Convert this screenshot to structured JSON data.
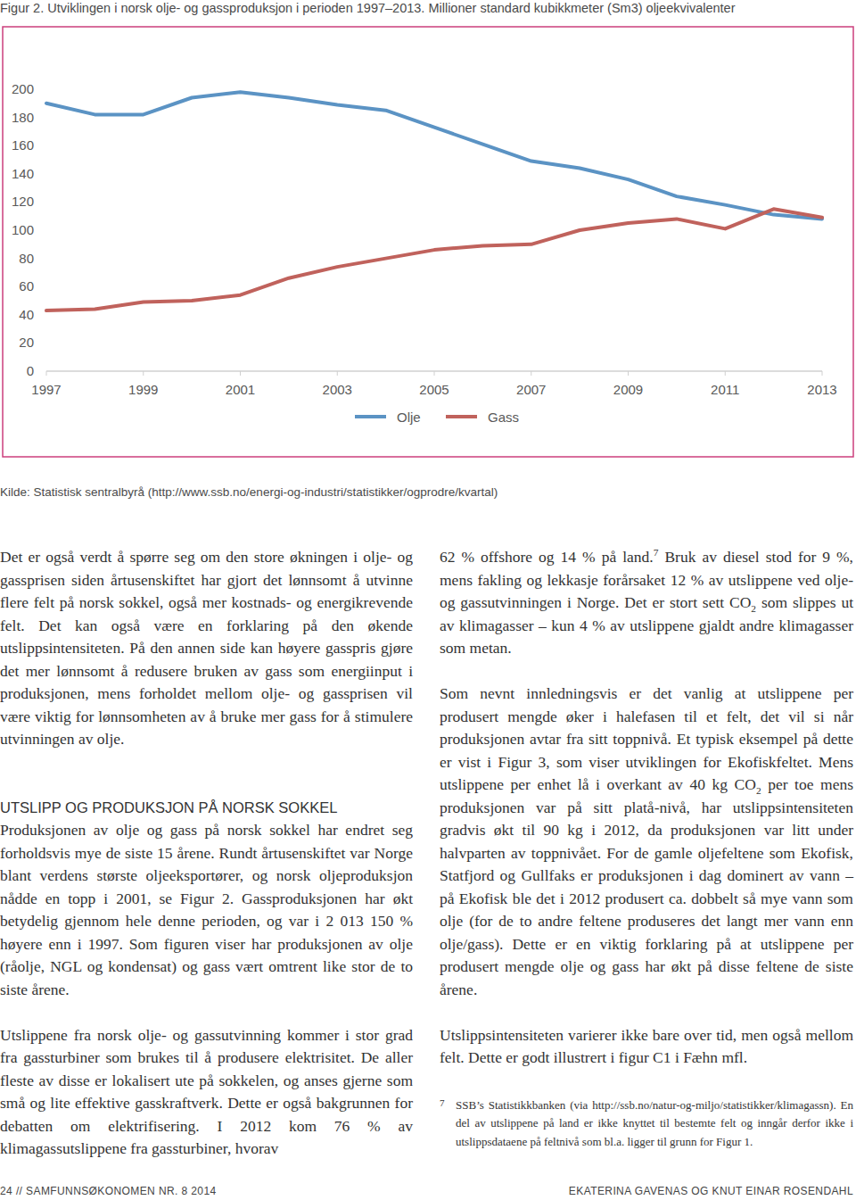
{
  "chart_data": {
    "type": "line",
    "title": "Figur 2. Utviklingen i norsk olje- og gassproduksjon i perioden 1997–2013. Millioner standard kubikkmeter (Sm3) oljeekvivalenter",
    "source": "Kilde: Statistisk sentralbyrå (http://www.ssb.no/energi-og-industri/statistikker/ogprodre/kvartal)",
    "x": [
      1997,
      1998,
      1999,
      2000,
      2001,
      2002,
      2003,
      2004,
      2005,
      2006,
      2007,
      2008,
      2009,
      2010,
      2011,
      2012,
      2013
    ],
    "xlim": [
      1997,
      2013
    ],
    "xticks": [
      1997,
      1999,
      2001,
      2003,
      2005,
      2007,
      2009,
      2011,
      2013
    ],
    "ylim": [
      0,
      200
    ],
    "yticks": [
      0,
      20,
      40,
      60,
      80,
      100,
      120,
      140,
      160,
      180,
      200
    ],
    "grid": false,
    "legend": "bottom",
    "series": [
      {
        "name": "Olje",
        "color": "#5b93c4",
        "values": [
          190,
          182,
          182,
          194,
          198,
          194,
          189,
          185,
          173,
          161,
          149,
          144,
          136,
          124,
          118,
          111,
          108
        ]
      },
      {
        "name": "Gass",
        "color": "#c0625c",
        "values": [
          43,
          44,
          49,
          50,
          54,
          66,
          74,
          80,
          86,
          89,
          90,
          100,
          105,
          108,
          101,
          115,
          109
        ]
      }
    ]
  },
  "document": {
    "columns": [
      {
        "blocks": [
          {
            "kind": "paragraph",
            "segments": [
              {
                "text": "Det er også verdt å spørre seg om den store økningen i olje- og gassprisen siden årtusenskiftet har gjort det lønnsomt å utvinne flere felt på norsk sokkel, også mer kostnads- og energikrevende felt. Det kan også være en forklaring på den økende utslippsintensiteten. På den annen side kan høyere gasspris gjøre det mer lønnsomt å redusere bruken av gass som energiinput i produksjonen, mens forholdet mellom olje- og gassprisen vil være viktig for lønnsomheten av å bruke mer gass for å stimulere utvinningen av olje."
              }
            ]
          },
          {
            "kind": "heading",
            "segments": [
              {
                "text": "UTSLIPP OG PRODUKSJON PÅ NORSK SOKKEL"
              }
            ]
          },
          {
            "kind": "paragraph",
            "segments": [
              {
                "text": "Produksjonen av olje og gass på norsk sokkel har endret seg forholdsvis mye de siste 15 årene. Rundt årtusenskiftet var Norge blant verdens største oljeeksportører, og norsk oljeproduksjon nådde en topp i 2001, se Figur 2. Gassproduksjonen har økt betydelig gjennom hele denne perioden, og var i 2 013 150 % høyere enn i 1997. Som figuren viser har produksjonen av olje (råolje, NGL og kondensat) og gass vært omtrent like stor de to siste årene."
              }
            ]
          },
          {
            "kind": "paragraph",
            "segments": [
              {
                "text": "Utslippene fra norsk olje- og gassutvinning kommer i stor grad fra gassturbiner som brukes til å produsere elektrisitet. De aller fleste av disse er lokalisert ute på sokkelen, og anses gjerne som små og lite effektive gasskraftverk. Dette er også bakgrunnen for debatten om elektrifisering. I 2012 kom 76 % av klimagassutslippene fra gassturbiner, hvorav"
              }
            ]
          }
        ]
      },
      {
        "blocks": [
          {
            "kind": "paragraph",
            "segments": [
              {
                "text": "62 % offshore og 14 % på land."
              },
              {
                "text": "7",
                "style": "sup"
              },
              {
                "text": " Bruk av diesel stod for 9 %, mens fakling og lekkasje forårsaket 12 % av utslippene ved olje- og gassutvinningen i Norge. Det er stort sett CO"
              },
              {
                "text": "2",
                "style": "sub"
              },
              {
                "text": " som slippes ut av klimagasser – kun 4 % av utslippene gjaldt andre klimagasser som metan."
              }
            ]
          },
          {
            "kind": "paragraph",
            "segments": [
              {
                "text": "Som nevnt innledningsvis er det vanlig at utslippene per produsert mengde øker i halefasen til et felt, det vil si når produksjonen avtar fra sitt toppnivå. Et typisk eksempel på dette er vist i Figur 3, som viser utviklingen for Ekofiskfeltet. Mens utslippene per enhet lå i overkant av 40 kg CO"
              },
              {
                "text": "2",
                "style": "sub"
              },
              {
                "text": " per toe mens produksjonen var på sitt platå-nivå, har utslippsintensiteten gradvis økt til 90 kg i 2012, da produksjonen var litt under halvparten av toppnivået. For de gamle oljefeltene som Ekofisk, Statfjord og Gullfaks er produksjonen i dag dominert av vann – på Ekofisk ble det i 2012 produsert ca. dobbelt så mye vann som olje (for de to andre feltene produseres det langt mer vann enn olje/gass). Dette er en viktig forklaring på at utslippene per produsert mengde olje og gass har økt på disse feltene de siste årene."
              }
            ]
          },
          {
            "kind": "paragraph",
            "segments": [
              {
                "text": "Utslippsintensiteten varierer ikke bare over tid, men også mellom felt. Dette er godt illustrert i figur C1 i Fæhn mfl."
              }
            ]
          },
          {
            "kind": "footnote",
            "number": "7",
            "segments": [
              {
                "text": "SSB’s Statistikkbanken (via http://ssb.no/natur-og-miljo/statistikker/klimagassn). En del av utslippene på land er ikke knyttet til bestemte felt og inngår derfor ikke i utslippsdataene på feltnivå som bl.a. ligger til grunn for Figur 1."
              }
            ]
          }
        ]
      }
    ],
    "footer": {
      "left": "24 // SAMFUNNSØKONOMEN NR. 8 2014",
      "right": "EKATERINA GAVENAS OG KNUT EINAR ROSENDAHL"
    }
  }
}
